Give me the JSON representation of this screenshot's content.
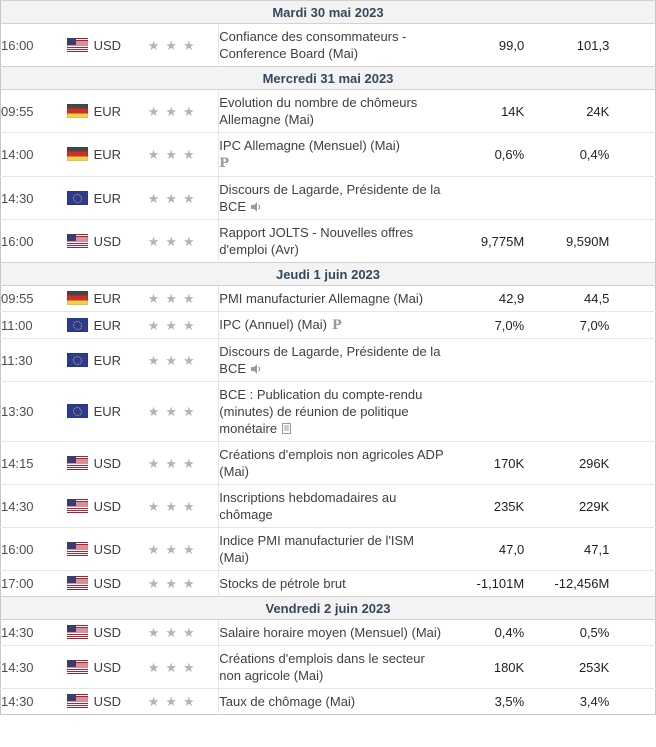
{
  "table": {
    "star_glyph": "★",
    "sections": [
      {
        "date": "Mardi 30 mai 2023",
        "events": [
          {
            "time": "16:00",
            "flag": "united-states",
            "currency": "USD",
            "importance": 3,
            "title": "Confiance des consommateurs - Conference Board (Mai)",
            "icon": null,
            "icon_newline": false,
            "actual": "",
            "forecast": "99,0",
            "previous": "101,3"
          }
        ]
      },
      {
        "date": "Mercredi 31 mai 2023",
        "events": [
          {
            "time": "09:55",
            "flag": "germany",
            "currency": "EUR",
            "importance": 3,
            "title": "Evolution du nombre de chômeurs Allemagne (Mai)",
            "icon": null,
            "icon_newline": false,
            "actual": "",
            "forecast": "14K",
            "previous": "24K"
          },
          {
            "time": "14:00",
            "flag": "germany",
            "currency": "EUR",
            "importance": 3,
            "title": "IPC Allemagne (Mensuel) (Mai)",
            "icon": "preliminary",
            "icon_newline": true,
            "actual": "",
            "forecast": "0,6%",
            "previous": "0,4%"
          },
          {
            "time": "14:30",
            "flag": "european-union",
            "currency": "EUR",
            "importance": 3,
            "title": "Discours de Lagarde, Présidente de la BCE",
            "icon": "speaker",
            "icon_newline": false,
            "actual": "",
            "forecast": "",
            "previous": ""
          },
          {
            "time": "16:00",
            "flag": "united-states",
            "currency": "USD",
            "importance": 3,
            "title": "Rapport JOLTS - Nouvelles offres d'emploi (Avr)",
            "icon": null,
            "icon_newline": false,
            "actual": "",
            "forecast": "9,775M",
            "previous": "9,590M"
          }
        ]
      },
      {
        "date": "Jeudi 1 juin 2023",
        "events": [
          {
            "time": "09:55",
            "flag": "germany",
            "currency": "EUR",
            "importance": 3,
            "title": "PMI manufacturier Allemagne (Mai)",
            "icon": null,
            "icon_newline": false,
            "actual": "",
            "forecast": "42,9",
            "previous": "44,5"
          },
          {
            "time": "11:00",
            "flag": "european-union",
            "currency": "EUR",
            "importance": 3,
            "title": "IPC (Annuel) (Mai)",
            "icon": "preliminary",
            "icon_newline": false,
            "actual": "",
            "forecast": "7,0%",
            "previous": "7,0%"
          },
          {
            "time": "11:30",
            "flag": "european-union",
            "currency": "EUR",
            "importance": 3,
            "title": "Discours de Lagarde, Présidente de la BCE",
            "icon": "speaker",
            "icon_newline": false,
            "actual": "",
            "forecast": "",
            "previous": ""
          },
          {
            "time": "13:30",
            "flag": "european-union",
            "currency": "EUR",
            "importance": 3,
            "title": "BCE : Publication du compte-rendu (minutes) de réunion de politique monétaire",
            "icon": "report",
            "icon_newline": false,
            "actual": "",
            "forecast": "",
            "previous": ""
          },
          {
            "time": "14:15",
            "flag": "united-states",
            "currency": "USD",
            "importance": 3,
            "title": "Créations d'emplois non agricoles ADP (Mai)",
            "icon": null,
            "icon_newline": false,
            "actual": "",
            "forecast": "170K",
            "previous": "296K"
          },
          {
            "time": "14:30",
            "flag": "united-states",
            "currency": "USD",
            "importance": 3,
            "title": "Inscriptions hebdomadaires au chômage",
            "icon": null,
            "icon_newline": false,
            "actual": "",
            "forecast": "235K",
            "previous": "229K"
          },
          {
            "time": "16:00",
            "flag": "united-states",
            "currency": "USD",
            "importance": 3,
            "title": "Indice PMI manufacturier de l'ISM (Mai)",
            "icon": null,
            "icon_newline": false,
            "actual": "",
            "forecast": "47,0",
            "previous": "47,1"
          },
          {
            "time": "17:00",
            "flag": "united-states",
            "currency": "USD",
            "importance": 3,
            "title": "Stocks de pétrole brut",
            "icon": null,
            "icon_newline": false,
            "actual": "",
            "forecast": "-1,101M",
            "previous": "-12,456M"
          }
        ]
      },
      {
        "date": "Vendredi 2 juin 2023",
        "events": [
          {
            "time": "14:30",
            "flag": "united-states",
            "currency": "USD",
            "importance": 3,
            "title": "Salaire horaire moyen (Mensuel) (Mai)",
            "icon": null,
            "icon_newline": false,
            "actual": "",
            "forecast": "0,4%",
            "previous": "0,5%"
          },
          {
            "time": "14:30",
            "flag": "united-states",
            "currency": "USD",
            "importance": 3,
            "title": "Créations d'emplois dans le secteur non agricole (Mai)",
            "icon": null,
            "icon_newline": false,
            "actual": "",
            "forecast": "180K",
            "previous": "253K"
          },
          {
            "time": "14:30",
            "flag": "united-states",
            "currency": "USD",
            "importance": 3,
            "title": "Taux de chômage (Mai)",
            "icon": null,
            "icon_newline": false,
            "actual": "",
            "forecast": "3,5%",
            "previous": "3,4%"
          }
        ]
      }
    ]
  },
  "icons": {
    "preliminary_glyph": "P"
  },
  "colors": {
    "day_header_bg": "#f3f3f3",
    "day_header_text": "#34495e",
    "star": "#b3b3b3",
    "row_border": "#e6e6e6",
    "outer_border": "#c6c6c6",
    "value_text": "#1f1f1f"
  }
}
